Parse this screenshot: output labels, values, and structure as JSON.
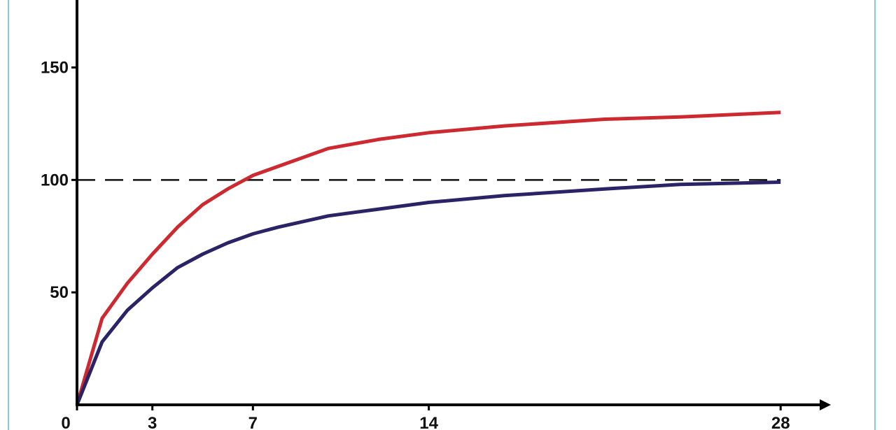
{
  "chart_data": {
    "type": "line",
    "x": [
      0,
      1,
      2,
      3,
      4,
      5,
      6,
      7,
      8,
      10,
      12,
      14,
      17,
      21,
      24,
      28
    ],
    "series": [
      {
        "color": "#cc2a30",
        "values": [
          0,
          38.5,
          54,
          67,
          79,
          89,
          96,
          102,
          106,
          114,
          118,
          121,
          124,
          127,
          128,
          130
        ]
      },
      {
        "color": "#2a2466",
        "values": [
          0,
          28,
          42,
          52,
          61,
          67,
          72,
          76,
          79,
          84,
          87,
          90,
          93,
          96,
          98,
          99
        ]
      }
    ],
    "reference_line": 100,
    "xlim": [
      0,
      30
    ],
    "xticks": [
      0,
      3,
      7,
      14,
      28
    ],
    "ylim": [
      0,
      180
    ],
    "yticks": [
      50,
      100,
      150
    ]
  }
}
